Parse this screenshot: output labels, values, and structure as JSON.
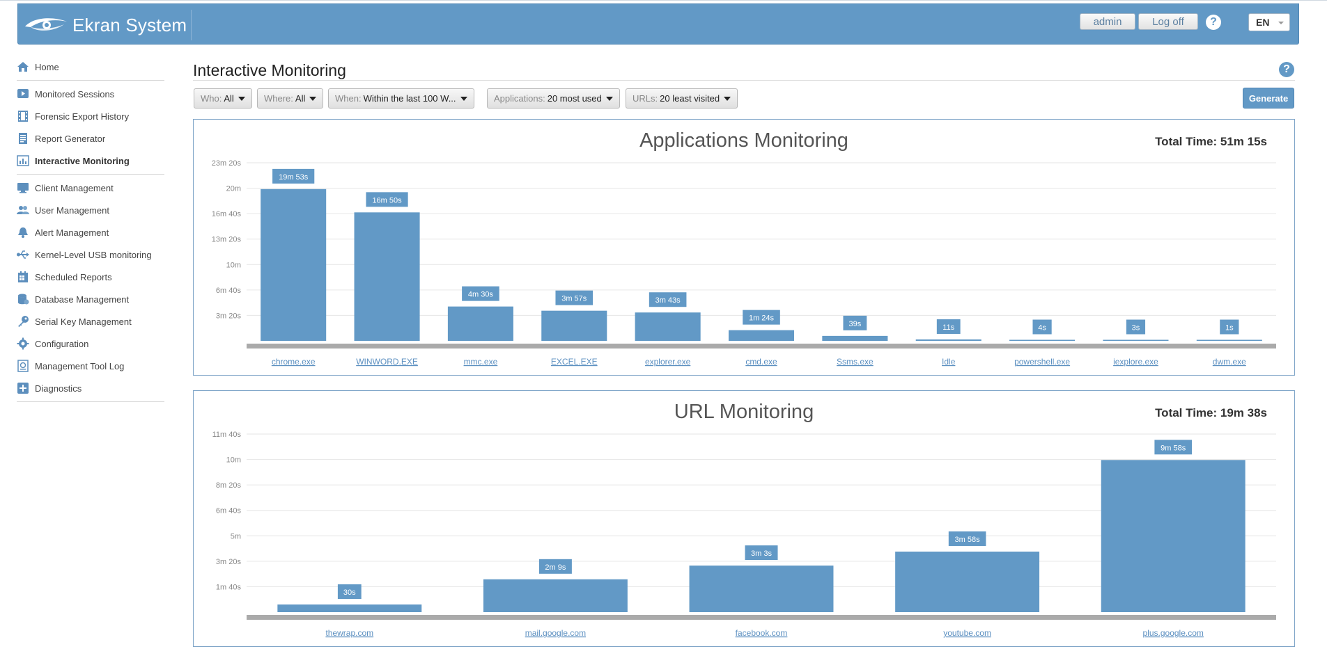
{
  "header": {
    "brand": "Ekran System",
    "user_label": "admin",
    "logoff_label": "Log off",
    "help_label": "?",
    "language": "EN"
  },
  "sidebar": {
    "items": [
      {
        "label": "Home",
        "icon": "home-icon"
      },
      {
        "label": "Monitored Sessions",
        "icon": "play-icon"
      },
      {
        "label": "Forensic Export History",
        "icon": "film-icon"
      },
      {
        "label": "Report Generator",
        "icon": "report-icon"
      },
      {
        "label": "Interactive Monitoring",
        "icon": "bar-chart-icon",
        "active": true
      },
      {
        "label": "Client Management",
        "icon": "monitor-icon"
      },
      {
        "label": "User Management",
        "icon": "users-icon"
      },
      {
        "label": "Alert Management",
        "icon": "bell-icon"
      },
      {
        "label": "Kernel-Level USB monitoring",
        "icon": "usb-icon"
      },
      {
        "label": "Scheduled Reports",
        "icon": "calendar-icon"
      },
      {
        "label": "Database Management",
        "icon": "database-icon"
      },
      {
        "label": "Serial Key Management",
        "icon": "key-icon"
      },
      {
        "label": "Configuration",
        "icon": "gear-icon"
      },
      {
        "label": "Management Tool Log",
        "icon": "log-icon"
      },
      {
        "label": "Diagnostics",
        "icon": "diagnostics-icon"
      }
    ]
  },
  "main": {
    "title": "Interactive Monitoring",
    "help_label": "?",
    "filters": {
      "who": {
        "key": "Who:",
        "value": "All"
      },
      "where": {
        "key": "Where:",
        "value": "All"
      },
      "when": {
        "key": "When:",
        "value": "Within the last 100 W..."
      },
      "applications": {
        "key": "Applications:",
        "value": "20 most used"
      },
      "urls": {
        "key": "URLs:",
        "value": "20 least visited"
      }
    },
    "generate_label": "Generate"
  },
  "colors": {
    "accent": "#6299c6",
    "bar": "#6299c6",
    "axis": "#aaaaaa"
  },
  "chart_data": [
    {
      "type": "bar",
      "title": "Applications Monitoring",
      "total": "Total Time: 51m 15s",
      "categories": [
        "chrome.exe",
        "WINWORD.EXE",
        "mmc.exe",
        "EXCEL.EXE",
        "explorer.exe",
        "cmd.exe",
        "Ssms.exe",
        "Idle",
        "powershell.exe",
        "iexplore.exe",
        "dwm.exe"
      ],
      "values": [
        1193,
        1010,
        270,
        237,
        223,
        84,
        39,
        11,
        4,
        3,
        1
      ],
      "value_labels": [
        "19m 53s",
        "16m 50s",
        "4m 30s",
        "3m 57s",
        "3m 43s",
        "1m 24s",
        "39s",
        "11s",
        "4s",
        "3s",
        "1s"
      ],
      "yticks": [
        200,
        400,
        600,
        800,
        1000,
        1200,
        1400
      ],
      "ytick_labels": [
        "3m 20s",
        "6m 40s",
        "10m",
        "13m 20s",
        "16m 40s",
        "20m",
        "23m 20s"
      ],
      "ylim": [
        0,
        1400
      ],
      "grid": true
    },
    {
      "type": "bar",
      "title": "URL Monitoring",
      "total": "Total Time: 19m 38s",
      "categories": [
        "thewrap.com",
        "mail.google.com",
        "facebook.com",
        "youtube.com",
        "plus.google.com"
      ],
      "values": [
        30,
        129,
        183,
        238,
        598
      ],
      "value_labels": [
        "30s",
        "2m 9s",
        "3m 3s",
        "3m 58s",
        "9m 58s"
      ],
      "yticks": [
        100,
        200,
        300,
        400,
        500,
        600,
        700
      ],
      "ytick_labels": [
        "1m 40s",
        "3m 20s",
        "5m",
        "6m 40s",
        "8m 20s",
        "10m",
        "11m 40s"
      ],
      "ylim": [
        0,
        700
      ],
      "grid": true
    }
  ]
}
